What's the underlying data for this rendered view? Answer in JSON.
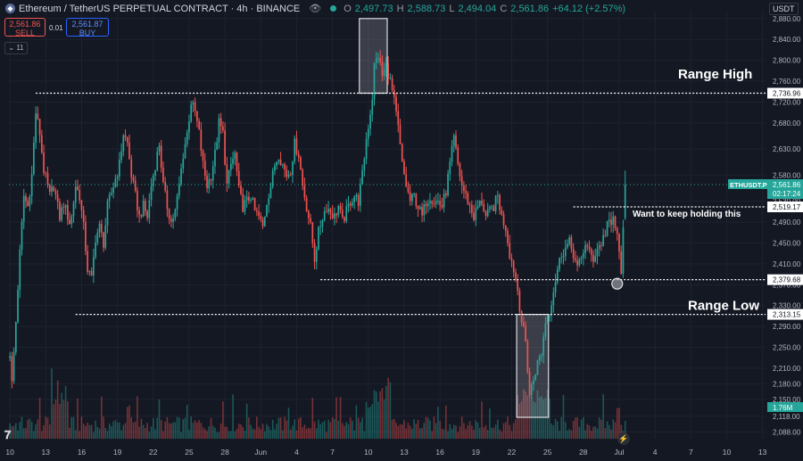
{
  "header": {
    "symbol_title": "Ethereum / TetherUS PERPETUAL CONTRACT · 4h · BINANCE",
    "open_label": "O",
    "open": "2,497.73",
    "high_label": "H",
    "high": "2,588.73",
    "low_label": "L",
    "low": "2,494.04",
    "close_label": "C",
    "close": "2,561.86",
    "change": "+64.12 (+2.57%)"
  },
  "trade": {
    "sell_price": "2,561.86",
    "sell_label": "SELL",
    "spread": "0.01",
    "buy_price": "2,561.87",
    "buy_label": "BUY"
  },
  "indicator_count": "11",
  "currency": "USDT",
  "colors": {
    "up": "#26a69a",
    "down": "#ef5350",
    "background": "#141823",
    "grid": "#1e2230"
  },
  "chart_data": {
    "type": "candlestick",
    "timeframe": "4h",
    "ylim": [
      2075,
      2895
    ],
    "y_ticks": [
      2880,
      2840,
      2800,
      2760,
      2720,
      2680,
      2630,
      2580,
      2530,
      2490,
      2450,
      2410,
      2370,
      2330,
      2290,
      2250,
      2210,
      2180,
      2150,
      2118,
      2088
    ],
    "y_tick_labels": [
      "2,880.00",
      "2,840.00",
      "2,800.00",
      "2,760.00",
      "2,720.00",
      "2,680.00",
      "2,630.00",
      "2,580.00",
      "2,530.00",
      "2,490.00",
      "2,450.00",
      "2,410.00",
      "2,370.00",
      "2,330.00",
      "2,290.00",
      "2,250.00",
      "2,210.00",
      "2,180.00",
      "2,150.00",
      "2,118.00",
      "2,088.00"
    ],
    "x_ticks": [
      {
        "label": "10",
        "i": 0
      },
      {
        "label": "13",
        "i": 18
      },
      {
        "label": "16",
        "i": 36
      },
      {
        "label": "19",
        "i": 54
      },
      {
        "label": "22",
        "i": 72
      },
      {
        "label": "25",
        "i": 90
      },
      {
        "label": "28",
        "i": 108
      },
      {
        "label": "Jun",
        "i": 126
      },
      {
        "label": "4",
        "i": 144
      },
      {
        "label": "7",
        "i": 162
      },
      {
        "label": "10",
        "i": 180
      },
      {
        "label": "13",
        "i": 198
      },
      {
        "label": "16",
        "i": 216
      },
      {
        "label": "19",
        "i": 234
      },
      {
        "label": "22",
        "i": 252
      },
      {
        "label": "25",
        "i": 270
      },
      {
        "label": "28",
        "i": 288
      },
      {
        "label": "Jul",
        "i": 306
      },
      {
        "label": "4",
        "i": 324
      },
      {
        "label": "7",
        "i": 342
      },
      {
        "label": "10",
        "i": 360
      },
      {
        "label": "13",
        "i": 378
      }
    ],
    "last_candle_index": 309,
    "anchors": [
      [
        0,
        2240
      ],
      [
        1,
        2180
      ],
      [
        3,
        2300
      ],
      [
        5,
        2430
      ],
      [
        7,
        2540
      ],
      [
        9,
        2520
      ],
      [
        11,
        2580
      ],
      [
        13,
        2700
      ],
      [
        15,
        2660
      ],
      [
        17,
        2590
      ],
      [
        20,
        2540
      ],
      [
        22,
        2560
      ],
      [
        25,
        2500
      ],
      [
        27,
        2525
      ],
      [
        30,
        2490
      ],
      [
        31,
        2500
      ],
      [
        33,
        2560
      ],
      [
        35,
        2540
      ],
      [
        37,
        2480
      ],
      [
        39,
        2400
      ],
      [
        41,
        2380
      ],
      [
        43,
        2460
      ],
      [
        45,
        2480
      ],
      [
        47,
        2450
      ],
      [
        49,
        2520
      ],
      [
        52,
        2560
      ],
      [
        55,
        2600
      ],
      [
        57,
        2660
      ],
      [
        59,
        2640
      ],
      [
        61,
        2580
      ],
      [
        63,
        2540
      ],
      [
        65,
        2500
      ],
      [
        67,
        2520
      ],
      [
        69,
        2500
      ],
      [
        71,
        2560
      ],
      [
        73,
        2600
      ],
      [
        75,
        2640
      ],
      [
        77,
        2560
      ],
      [
        79,
        2520
      ],
      [
        81,
        2490
      ],
      [
        83,
        2510
      ],
      [
        85,
        2560
      ],
      [
        87,
        2620
      ],
      [
        89,
        2660
      ],
      [
        91,
        2720
      ],
      [
        93,
        2700
      ],
      [
        95,
        2660
      ],
      [
        97,
        2600
      ],
      [
        99,
        2560
      ],
      [
        101,
        2580
      ],
      [
        103,
        2620
      ],
      [
        105,
        2680
      ],
      [
        107,
        2660
      ],
      [
        109,
        2560
      ],
      [
        111,
        2600
      ],
      [
        113,
        2620
      ],
      [
        115,
        2550
      ],
      [
        117,
        2520
      ],
      [
        119,
        2530
      ],
      [
        121,
        2540
      ],
      [
        123,
        2510
      ],
      [
        125,
        2500
      ],
      [
        127,
        2480
      ],
      [
        129,
        2530
      ],
      [
        131,
        2560
      ],
      [
        133,
        2600
      ],
      [
        135,
        2620
      ],
      [
        137,
        2600
      ],
      [
        139,
        2580
      ],
      [
        141,
        2590
      ],
      [
        143,
        2640
      ],
      [
        145,
        2620
      ],
      [
        147,
        2560
      ],
      [
        149,
        2520
      ],
      [
        151,
        2480
      ],
      [
        153,
        2420
      ],
      [
        155,
        2470
      ],
      [
        157,
        2500
      ],
      [
        159,
        2520
      ],
      [
        161,
        2510
      ],
      [
        163,
        2500
      ],
      [
        165,
        2520
      ],
      [
        167,
        2490
      ],
      [
        169,
        2510
      ],
      [
        171,
        2530
      ],
      [
        173,
        2540
      ],
      [
        175,
        2530
      ],
      [
        177,
        2580
      ],
      [
        179,
        2650
      ],
      [
        181,
        2700
      ],
      [
        182,
        2730
      ],
      [
        183,
        2790
      ],
      [
        185,
        2810
      ],
      [
        187,
        2770
      ],
      [
        189,
        2790
      ],
      [
        191,
        2760
      ],
      [
        193,
        2720
      ],
      [
        195,
        2670
      ],
      [
        197,
        2600
      ],
      [
        199,
        2560
      ],
      [
        201,
        2530
      ],
      [
        203,
        2540
      ],
      [
        205,
        2520
      ],
      [
        207,
        2500
      ],
      [
        209,
        2530
      ],
      [
        211,
        2540
      ],
      [
        213,
        2530
      ],
      [
        215,
        2530
      ],
      [
        217,
        2520
      ],
      [
        219,
        2550
      ],
      [
        221,
        2600
      ],
      [
        223,
        2650
      ],
      [
        225,
        2600
      ],
      [
        227,
        2560
      ],
      [
        229,
        2540
      ],
      [
        231,
        2520
      ],
      [
        233,
        2500
      ],
      [
        235,
        2520
      ],
      [
        237,
        2530
      ],
      [
        239,
        2500
      ],
      [
        241,
        2510
      ],
      [
        243,
        2520
      ],
      [
        245,
        2540
      ],
      [
        247,
        2500
      ],
      [
        249,
        2480
      ],
      [
        251,
        2430
      ],
      [
        253,
        2400
      ],
      [
        255,
        2360
      ],
      [
        257,
        2300
      ],
      [
        259,
        2260
      ],
      [
        260,
        2210
      ],
      [
        261,
        2160
      ],
      [
        263,
        2190
      ],
      [
        265,
        2220
      ],
      [
        267,
        2240
      ],
      [
        268,
        2270
      ],
      [
        269,
        2300
      ],
      [
        271,
        2320
      ],
      [
        273,
        2360
      ],
      [
        275,
        2400
      ],
      [
        277,
        2430
      ],
      [
        279,
        2440
      ],
      [
        281,
        2450
      ],
      [
        283,
        2430
      ],
      [
        285,
        2400
      ],
      [
        287,
        2420
      ],
      [
        289,
        2450
      ],
      [
        291,
        2430
      ],
      [
        293,
        2420
      ],
      [
        295,
        2440
      ],
      [
        297,
        2450
      ],
      [
        299,
        2470
      ],
      [
        300,
        2490
      ],
      [
        302,
        2480
      ],
      [
        303,
        2500
      ],
      [
        305,
        2460
      ],
      [
        306,
        2430
      ],
      [
        307,
        2400
      ],
      [
        308,
        2470
      ],
      [
        309,
        2560
      ]
    ],
    "volume_ylim": [
      0,
      40
    ],
    "levels": [
      {
        "name": "range-high",
        "price": 2736.96,
        "label": "2,736.96",
        "from_index": 13
      },
      {
        "name": "want-to-hold",
        "price": 2519.17,
        "label": "2,519.17",
        "from_index": 283
      },
      {
        "name": "support",
        "price": 2379.68,
        "label": "2,379.68",
        "from_index": 156
      },
      {
        "name": "range-low",
        "price": 2313.15,
        "label": "2,313.15",
        "from_index": 33
      }
    ],
    "last_price": {
      "symbol": "ETHUSDT.P",
      "price": 2561.86,
      "label": "2,561.86",
      "countdown": "02:17:24"
    },
    "volume_badge": "1.76M",
    "boxes": [
      {
        "name": "top-box",
        "from_index": 176,
        "to_index": 189,
        "price_high": 2880,
        "price_low": 2736.96
      },
      {
        "name": "bottom-box",
        "from_index": 255,
        "to_index": 270,
        "price_high": 2313.15
      }
    ],
    "circle_marker": {
      "index": 305,
      "price": 2372
    },
    "annotations": [
      {
        "name": "range-high-text",
        "text": "Range High",
        "price": 2765
      },
      {
        "name": "range-low-text",
        "text": "Range Low",
        "price": 2322
      },
      {
        "name": "hold-text",
        "text": "Want to keep holding this",
        "price": 2500
      }
    ]
  }
}
